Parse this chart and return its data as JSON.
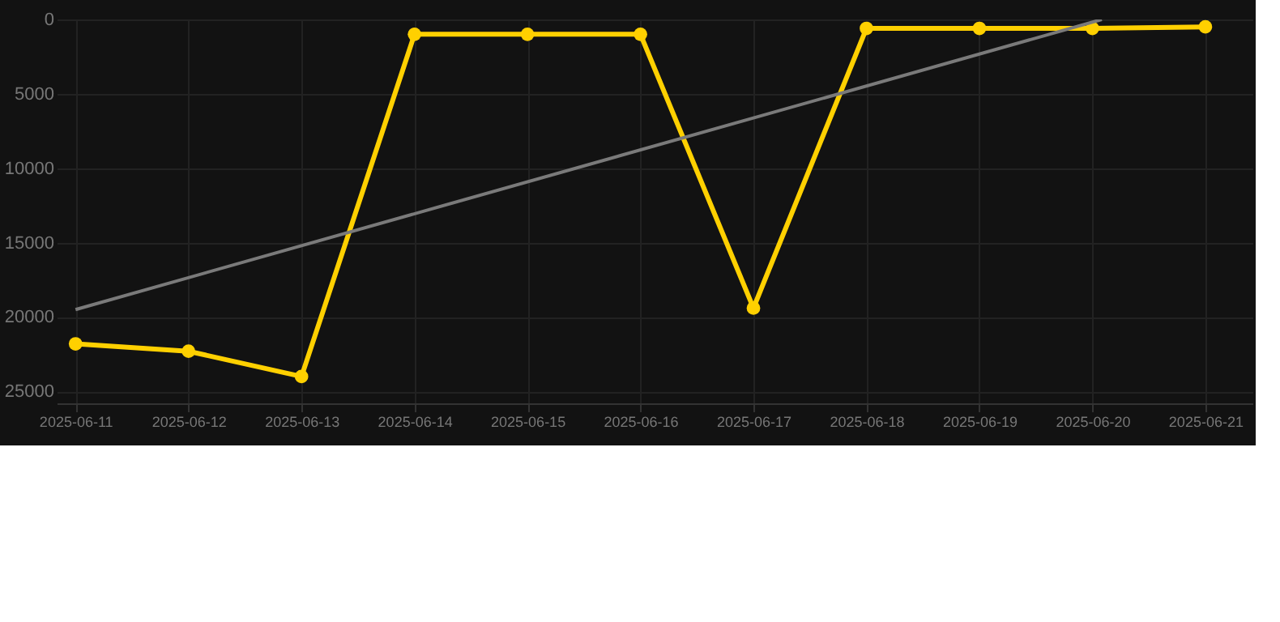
{
  "chart_data": {
    "type": "line",
    "x": [
      "2025-06-11",
      "2025-06-12",
      "2025-06-13",
      "2025-06-14",
      "2025-06-15",
      "2025-06-16",
      "2025-06-17",
      "2025-06-18",
      "2025-06-19",
      "2025-06-20",
      "2025-06-21"
    ],
    "series": [
      {
        "color": "#ffd000",
        "values": [
          21800,
          22300,
          24000,
          1000,
          1000,
          1000,
          19400,
          600,
          600,
          600,
          500
        ],
        "marker": "circle"
      },
      {
        "type": "line",
        "color": "#7a7a7a",
        "x": [
          "2025-06-11",
          "2025-06-20T02:00"
        ],
        "values": [
          19500,
          0
        ],
        "marker": "none"
      }
    ],
    "ylim": [
      25800,
      0
    ],
    "yticks": [
      0,
      5000,
      10000,
      15000,
      20000,
      25000
    ],
    "xlim": [
      "2025-06-10T20:00",
      "2025-06-21T10:00"
    ],
    "xticks": [
      "2025-06-11",
      "2025-06-12",
      "2025-06-13",
      "2025-06-14",
      "2025-06-15",
      "2025-06-16",
      "2025-06-17",
      "2025-06-18",
      "2025-06-19",
      "2025-06-20",
      "2025-06-21"
    ],
    "grid": true,
    "legend": false
  }
}
